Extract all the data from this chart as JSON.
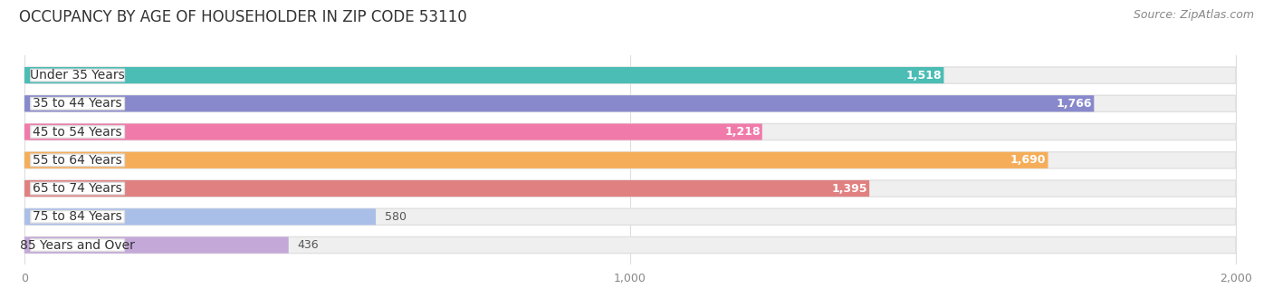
{
  "title": "OCCUPANCY BY AGE OF HOUSEHOLDER IN ZIP CODE 53110",
  "source": "Source: ZipAtlas.com",
  "categories": [
    "Under 35 Years",
    "35 to 44 Years",
    "45 to 54 Years",
    "55 to 64 Years",
    "65 to 74 Years",
    "75 to 84 Years",
    "85 Years and Over"
  ],
  "values": [
    1518,
    1766,
    1218,
    1690,
    1395,
    580,
    436
  ],
  "bar_colors": [
    "#4BBDB5",
    "#8888CC",
    "#F07BAA",
    "#F5AD5A",
    "#E08080",
    "#AABFE8",
    "#C4A8D8"
  ],
  "bar_bg_color": "#EFEFEF",
  "bar_border_color": "#E0E0E0",
  "xlim": [
    0,
    2000
  ],
  "xticks": [
    0,
    1000,
    2000
  ],
  "fig_bg_color": "#FFFFFF",
  "title_fontsize": 12,
  "source_fontsize": 9,
  "label_fontsize": 10,
  "value_fontsize": 9,
  "bar_height": 0.58,
  "value_threshold": 700
}
